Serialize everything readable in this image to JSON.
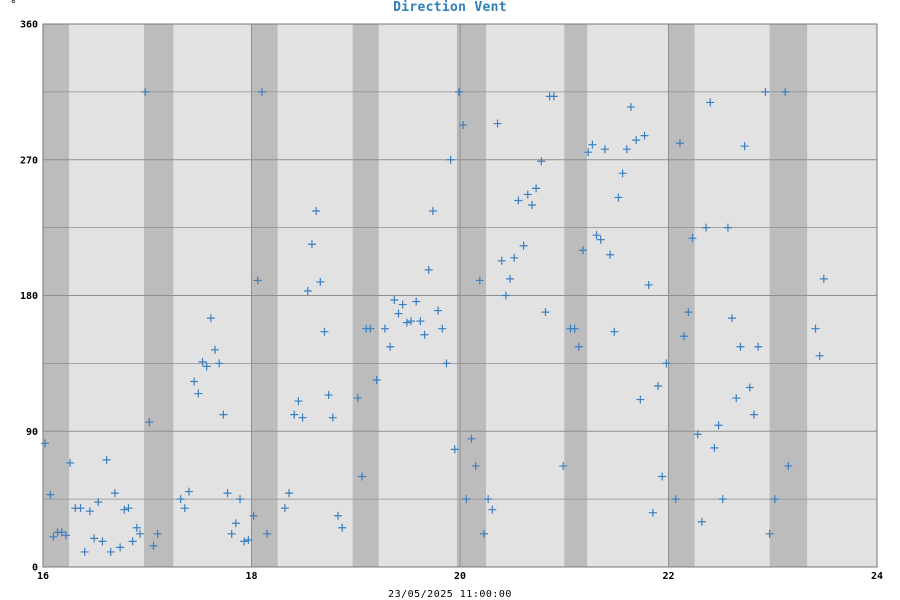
{
  "chart_data": {
    "type": "scatter",
    "title": "Direction Vent",
    "unit_label": "°",
    "xlabel": "23/05/2025 11:00:00",
    "xlim": [
      16,
      24
    ],
    "ylim": [
      0,
      360
    ],
    "x_ticks": [
      16,
      18,
      20,
      22,
      24
    ],
    "y_ticks": [
      0,
      90,
      180,
      270,
      360
    ],
    "y_minor_gridlines": [
      45,
      135,
      225,
      315
    ],
    "grid": true,
    "colors": {
      "marker": "#3a7fc0",
      "plot_bg": "#e2e2e2",
      "band": "#bcbcbc",
      "grid": "#8f8f8f",
      "title": "#2f7fb8"
    },
    "shaded_bands": [
      [
        16.0,
        16.25
      ],
      [
        16.97,
        17.25
      ],
      [
        18.0,
        18.25
      ],
      [
        18.97,
        19.22
      ],
      [
        19.97,
        20.25
      ],
      [
        21.0,
        21.22
      ],
      [
        22.0,
        22.25
      ],
      [
        22.97,
        23.33
      ]
    ],
    "points": [
      [
        16.02,
        82
      ],
      [
        16.07,
        48
      ],
      [
        16.1,
        20
      ],
      [
        16.14,
        23
      ],
      [
        16.18,
        23
      ],
      [
        16.22,
        21
      ],
      [
        16.26,
        69
      ],
      [
        16.31,
        39
      ],
      [
        16.36,
        39
      ],
      [
        16.4,
        10
      ],
      [
        16.45,
        37
      ],
      [
        16.49,
        19
      ],
      [
        16.53,
        43
      ],
      [
        16.57,
        17
      ],
      [
        16.61,
        71
      ],
      [
        16.65,
        10
      ],
      [
        16.69,
        49
      ],
      [
        16.74,
        13
      ],
      [
        16.78,
        38
      ],
      [
        16.82,
        39
      ],
      [
        16.86,
        17
      ],
      [
        16.9,
        26
      ],
      [
        16.93,
        22
      ],
      [
        16.98,
        315
      ],
      [
        17.02,
        96
      ],
      [
        17.06,
        14
      ],
      [
        17.1,
        22
      ],
      [
        17.32,
        45
      ],
      [
        17.36,
        39
      ],
      [
        17.4,
        50
      ],
      [
        17.45,
        123
      ],
      [
        17.49,
        115
      ],
      [
        17.53,
        136
      ],
      [
        17.57,
        133
      ],
      [
        17.61,
        165
      ],
      [
        17.65,
        144
      ],
      [
        17.69,
        135
      ],
      [
        17.73,
        101
      ],
      [
        17.77,
        49
      ],
      [
        17.81,
        22
      ],
      [
        17.85,
        29
      ],
      [
        17.89,
        45
      ],
      [
        17.93,
        17
      ],
      [
        17.97,
        18
      ],
      [
        18.02,
        34
      ],
      [
        18.06,
        190
      ],
      [
        18.1,
        315
      ],
      [
        18.15,
        22
      ],
      [
        18.32,
        39
      ],
      [
        18.36,
        49
      ],
      [
        18.41,
        101
      ],
      [
        18.45,
        110
      ],
      [
        18.49,
        99
      ],
      [
        18.54,
        183
      ],
      [
        18.58,
        214
      ],
      [
        18.62,
        236
      ],
      [
        18.66,
        189
      ],
      [
        18.7,
        156
      ],
      [
        18.74,
        114
      ],
      [
        18.78,
        99
      ],
      [
        18.83,
        34
      ],
      [
        18.87,
        26
      ],
      [
        19.02,
        112
      ],
      [
        19.06,
        60
      ],
      [
        19.1,
        158
      ],
      [
        19.14,
        158
      ],
      [
        19.2,
        124
      ],
      [
        19.28,
        158
      ],
      [
        19.33,
        146
      ],
      [
        19.37,
        177
      ],
      [
        19.41,
        168
      ],
      [
        19.45,
        174
      ],
      [
        19.49,
        162
      ],
      [
        19.53,
        163
      ],
      [
        19.58,
        176
      ],
      [
        19.62,
        163
      ],
      [
        19.66,
        154
      ],
      [
        19.7,
        197
      ],
      [
        19.74,
        236
      ],
      [
        19.79,
        170
      ],
      [
        19.83,
        158
      ],
      [
        19.87,
        135
      ],
      [
        19.91,
        270
      ],
      [
        19.95,
        78
      ],
      [
        19.99,
        315
      ],
      [
        20.03,
        293
      ],
      [
        20.06,
        45
      ],
      [
        20.11,
        85
      ],
      [
        20.15,
        67
      ],
      [
        20.19,
        190
      ],
      [
        20.23,
        22
      ],
      [
        20.27,
        45
      ],
      [
        20.31,
        38
      ],
      [
        20.36,
        294
      ],
      [
        20.4,
        203
      ],
      [
        20.44,
        180
      ],
      [
        20.48,
        191
      ],
      [
        20.52,
        205
      ],
      [
        20.56,
        243
      ],
      [
        20.61,
        213
      ],
      [
        20.65,
        247
      ],
      [
        20.69,
        240
      ],
      [
        20.73,
        251
      ],
      [
        20.78,
        269
      ],
      [
        20.82,
        169
      ],
      [
        20.86,
        312
      ],
      [
        20.9,
        312
      ],
      [
        20.99,
        67
      ],
      [
        21.06,
        158
      ],
      [
        21.1,
        158
      ],
      [
        21.14,
        146
      ],
      [
        21.18,
        210
      ],
      [
        21.23,
        275
      ],
      [
        21.27,
        280
      ],
      [
        21.31,
        220
      ],
      [
        21.35,
        217
      ],
      [
        21.39,
        277
      ],
      [
        21.44,
        207
      ],
      [
        21.48,
        156
      ],
      [
        21.52,
        245
      ],
      [
        21.56,
        261
      ],
      [
        21.6,
        277
      ],
      [
        21.64,
        305
      ],
      [
        21.69,
        283
      ],
      [
        21.73,
        111
      ],
      [
        21.77,
        286
      ],
      [
        21.81,
        187
      ],
      [
        21.85,
        36
      ],
      [
        21.9,
        120
      ],
      [
        21.94,
        60
      ],
      [
        21.98,
        135
      ],
      [
        22.07,
        45
      ],
      [
        22.11,
        281
      ],
      [
        22.15,
        153
      ],
      [
        22.19,
        169
      ],
      [
        22.23,
        218
      ],
      [
        22.28,
        88
      ],
      [
        22.32,
        30
      ],
      [
        22.36,
        225
      ],
      [
        22.4,
        308
      ],
      [
        22.44,
        79
      ],
      [
        22.48,
        94
      ],
      [
        22.52,
        45
      ],
      [
        22.57,
        225
      ],
      [
        22.61,
        165
      ],
      [
        22.65,
        112
      ],
      [
        22.69,
        146
      ],
      [
        22.73,
        279
      ],
      [
        22.78,
        119
      ],
      [
        22.82,
        101
      ],
      [
        22.86,
        146
      ],
      [
        22.93,
        315
      ],
      [
        22.97,
        22
      ],
      [
        23.02,
        45
      ],
      [
        23.12,
        315
      ],
      [
        23.15,
        67
      ],
      [
        23.41,
        158
      ],
      [
        23.45,
        140
      ],
      [
        23.49,
        191
      ]
    ]
  }
}
